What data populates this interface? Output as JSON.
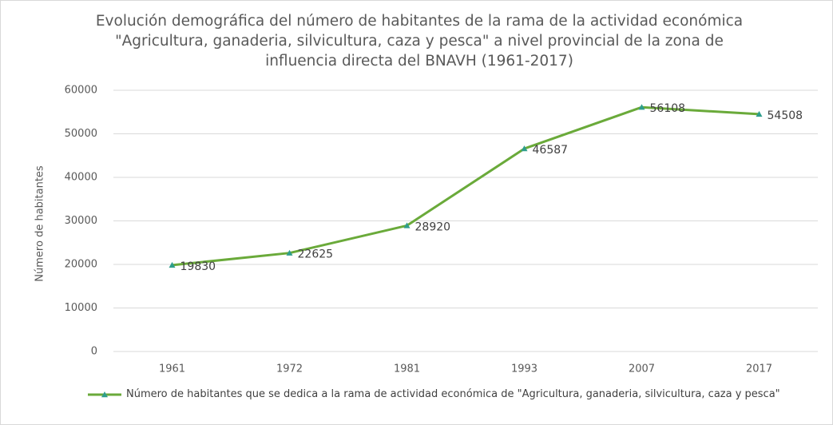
{
  "chart_data": {
    "type": "line",
    "title": "Evolución demográfica del número  de habitantes de la rama de la actividad económica \"Agricultura, ganaderia, silvicultura, caza y pesca\" a nivel provincial de la  zona de influencia directa del BNAVH (1961-2017)",
    "y_label": "Número de habitantes",
    "categories": [
      "1961",
      "1972",
      "1981",
      "1993",
      "2007",
      "2017"
    ],
    "series": [
      {
        "name": "Número de habitantes que se dedica a la rama de actividad económica de \"Agricultura, ganaderia, silvicultura, caza y pesca\"",
        "color": "#6aaa3a",
        "marker_color": "#2e9e8c",
        "values": [
          19830,
          22625,
          28920,
          46587,
          56108,
          54508
        ]
      }
    ],
    "ylim": [
      0,
      60000
    ],
    "yticks": [
      0,
      10000,
      20000,
      30000,
      40000,
      50000,
      60000
    ],
    "grid": true,
    "legend": "bottom"
  }
}
